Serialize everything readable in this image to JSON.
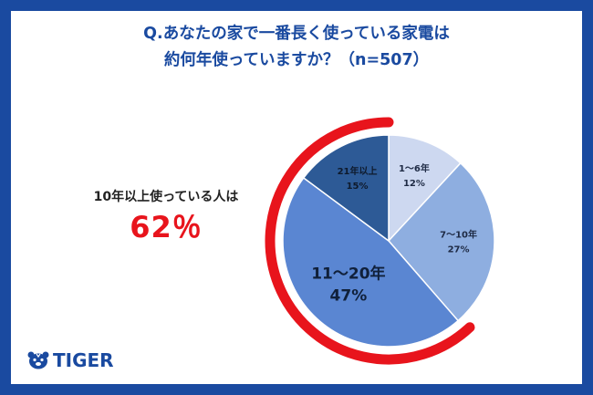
{
  "title_line1": "Q.あなたの家で一番長く使っている家電は",
  "title_line2": "約何年使っていますか？（n=507）",
  "callout": {
    "label": "10年以上使っている人は",
    "value": "62％"
  },
  "logo": {
    "text": "TIGER",
    "icon": "tiger-head-icon"
  },
  "colors": {
    "frame": "#1a4aa0",
    "accent": "#e8141c",
    "title": "#1a4aa0"
  },
  "chart_data": {
    "type": "pie",
    "title": "",
    "slices": [
      {
        "label": "1～6年",
        "value": 12,
        "pct_label": "12%",
        "color": "#cdd8f0",
        "text_color": "#1e2a44",
        "big": false
      },
      {
        "label": "7～10年",
        "value": 27,
        "pct_label": "27%",
        "color": "#8eaee0",
        "text_color": "#1e2a44",
        "big": false
      },
      {
        "label": "11～20年",
        "value": 47,
        "pct_label": "47%",
        "color": "#5a86d2",
        "text_color": "#10203a",
        "big": true
      },
      {
        "label": "21年以上",
        "value": 15,
        "pct_label": "15%",
        "color": "#2d5a96",
        "text_color": "#0e1a2c",
        "big": false
      }
    ],
    "highlight_arc": {
      "label": "10年以上",
      "value": 62,
      "color": "#e8141c"
    }
  }
}
